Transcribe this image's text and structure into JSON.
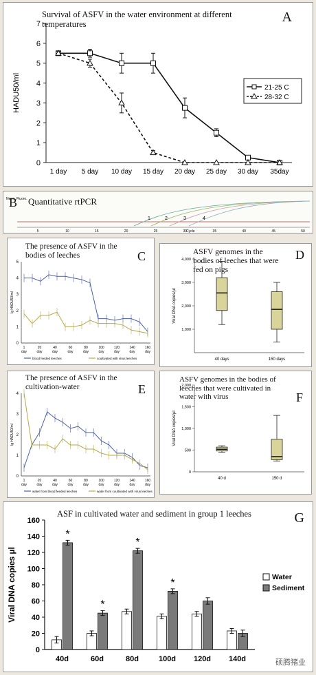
{
  "panels": {
    "A": {
      "letter": "A",
      "title": "Survival of ASFV in the water environment at different temperatures"
    },
    "B": {
      "letter": "B",
      "title": "Quantitative rtPCR"
    },
    "C": {
      "letter": "C",
      "title": "The presence of ASFV in the bodies of leeches"
    },
    "D": {
      "letter": "D",
      "title": "ASFV genomes in the bodies of leeches that were fed on pigs"
    },
    "E": {
      "letter": "E",
      "title": "The presence of ASFV in the cultivation-water"
    },
    "F": {
      "letter": "F",
      "title": "ASFV genomes in the bodies of leeches that were cultivated in water with virus"
    },
    "G": {
      "letter": "G",
      "title": "ASF in cultivated water and sediment in group 1 leeches"
    }
  },
  "watermark": "硕腾猪业",
  "chart_data": [
    {
      "id": "A",
      "type": "line",
      "categories": [
        "1 day",
        "5 day",
        "10 day",
        "15 day",
        "20 day",
        "25 day",
        "30 day",
        "35day"
      ],
      "ylabel": "HADU50/ml",
      "ylim": [
        0,
        7
      ],
      "yticks": [
        0,
        1,
        2,
        3,
        4,
        5,
        6,
        7
      ],
      "series": [
        {
          "name": "21-25 C",
          "values": [
            5.5,
            5.5,
            5,
            5,
            2.75,
            1.5,
            0.25,
            0
          ],
          "err": [
            0.1,
            0.2,
            0.5,
            0.5,
            0.5,
            0.2,
            0.05,
            0
          ],
          "style": "solid",
          "marker": "square"
        },
        {
          "name": "28-32 C",
          "values": [
            5.5,
            5,
            3,
            0.5,
            0,
            0,
            0,
            0
          ],
          "err": [
            0.1,
            0.2,
            0.5,
            0.1,
            0,
            0,
            0,
            0
          ],
          "style": "dashed",
          "marker": "triangle"
        }
      ],
      "legend": "right"
    },
    {
      "id": "B",
      "type": "line",
      "xlabel": "Cycle",
      "ylabel": "Norm. Fluoro.",
      "xticks": [
        "5",
        "10",
        "15",
        "20",
        "25",
        "30",
        "35",
        "40",
        "45",
        "50"
      ],
      "curve_labels": [
        "1",
        "2",
        "3",
        "4"
      ]
    },
    {
      "id": "C",
      "type": "line",
      "categories": [
        "1 day",
        "20 day",
        "30 day",
        "40 day",
        "50 day",
        "60 day",
        "70 day",
        "80 day",
        "90 day",
        "100 day",
        "110 day",
        "120 day",
        "130 day",
        "140 day",
        "150 day",
        "160 day"
      ],
      "xtick_labels": [
        "1 day",
        "20 day",
        "40 day",
        "60 day",
        "80 day",
        "100 day",
        "120 day",
        "140 day",
        "160 day"
      ],
      "ylabel": "lg HADU50/ml",
      "ylim": [
        0,
        5
      ],
      "yticks": [
        "0",
        "1",
        "2",
        "3",
        "4",
        "5"
      ],
      "series": [
        {
          "name": "blood feeded leeches",
          "color": "#4a5fa8",
          "values": [
            4,
            4,
            3.8,
            4.2,
            4.1,
            4.1,
            4,
            3.9,
            3.7,
            1.5,
            1.5,
            1.4,
            1.5,
            1.5,
            1.3,
            0.7
          ]
        },
        {
          "name": "coultivated with virus leeches",
          "color": "#b5a84a",
          "values": [
            1.8,
            1.2,
            1.7,
            1.7,
            1.9,
            1,
            1,
            1.1,
            1.4,
            1.2,
            1.2,
            1.2,
            1.1,
            0.8,
            0.7,
            0.6
          ]
        }
      ]
    },
    {
      "id": "D",
      "type": "box",
      "categories": [
        "40 days",
        "150 days"
      ],
      "ylabel": "Viral DNA copies/µl",
      "yticks": [
        "1,000",
        "2,000",
        "3,000",
        "4,000"
      ],
      "ylim": [
        0,
        4000
      ],
      "boxes": [
        {
          "min": 1200,
          "q1": 1800,
          "median": 2550,
          "q3": 3200,
          "max": 3900
        },
        {
          "min": 450,
          "q1": 1000,
          "median": 1850,
          "q3": 2600,
          "max": 3000
        }
      ]
    },
    {
      "id": "E",
      "type": "line",
      "categories": [
        "1 day",
        "10 day",
        "20 day",
        "30 day",
        "40 day",
        "50 day",
        "60 day",
        "70 day",
        "80 day",
        "90 day",
        "100 day",
        "110 day",
        "120 day",
        "130 day",
        "140 day",
        "150 day",
        "160 day"
      ],
      "xtick_labels": [
        "1 day",
        "20 day",
        "40 day",
        "60 day",
        "80 day",
        "100 day",
        "120 day",
        "140 day",
        "160 day"
      ],
      "ylabel": "lg HADU50/ml",
      "ylim": [
        0,
        4
      ],
      "yticks": [
        "0",
        "1",
        "2",
        "3",
        "4"
      ],
      "series": [
        {
          "name": "water from blood feeded leeches",
          "color": "#4a5fa8",
          "values": [
            0.4,
            1.5,
            2.1,
            3.1,
            2.8,
            2.6,
            2.3,
            2.4,
            2.1,
            2.1,
            1.7,
            1.5,
            1.1,
            1.1,
            0.9,
            0.5,
            0.4
          ]
        },
        {
          "name": "water from coultivated with virus leeches",
          "color": "#b5a84a",
          "values": [
            4,
            1.5,
            1.5,
            1.5,
            1.3,
            1.8,
            1.5,
            1.5,
            1.3,
            1.3,
            1.1,
            1.0,
            1.0,
            1.0,
            0.8,
            0.6,
            0.3
          ]
        }
      ]
    },
    {
      "id": "F",
      "type": "box",
      "categories": [
        "40 d",
        "150 d"
      ],
      "ylabel": "Viral DNA copies/µl",
      "yticks": [
        "0",
        "500",
        "1,000",
        "1,500",
        "2,000"
      ],
      "ylim": [
        0,
        2000
      ],
      "boxes": [
        {
          "min": 450,
          "q1": 480,
          "median": 520,
          "q3": 570,
          "max": 600
        },
        {
          "min": 250,
          "q1": 280,
          "median": 350,
          "q3": 750,
          "max": 1300
        }
      ]
    },
    {
      "id": "G",
      "type": "bar",
      "categories": [
        "40d",
        "60d",
        "80d",
        "100d",
        "120d",
        "140d"
      ],
      "ylabel": "Viral DNA copies µl",
      "ylim": [
        0,
        160
      ],
      "yticks": [
        0,
        20,
        40,
        60,
        80,
        100,
        120,
        140,
        160
      ],
      "series": [
        {
          "name": "Water",
          "values": [
            12,
            20,
            47,
            41,
            44,
            23
          ],
          "err": [
            4,
            3,
            3,
            3,
            3,
            3
          ]
        },
        {
          "name": "Sediment",
          "values": [
            132,
            45,
            122,
            72,
            60,
            20
          ],
          "err": [
            3,
            3,
            3,
            3,
            4,
            4
          ]
        }
      ],
      "significant": [
        0,
        1,
        2,
        3
      ],
      "marker": "*",
      "legend": "right"
    }
  ]
}
